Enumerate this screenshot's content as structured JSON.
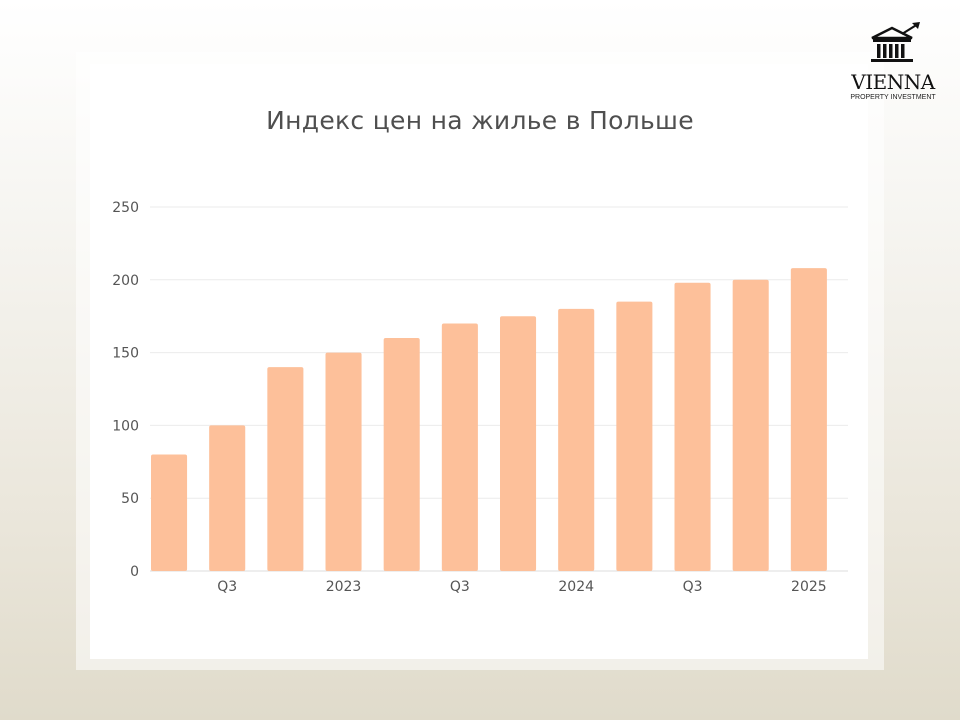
{
  "brand": {
    "name": "VIENNA",
    "tagline": "PROPERTY INVESTMENT",
    "logo_icon": "building-arrow-icon"
  },
  "colors": {
    "bar": "#fdc09a",
    "grid": "#ebebeb",
    "tick": "#555555",
    "title": "#4f4f4f"
  },
  "chart_data": {
    "type": "bar",
    "title": "Индекс цен на жилье в Польше",
    "xlabel": "",
    "ylabel": "",
    "ylim": [
      0,
      250
    ],
    "yticks": [
      0,
      50,
      100,
      150,
      200,
      250
    ],
    "grid": true,
    "legend": "none",
    "values": [
      80,
      100,
      140,
      150,
      160,
      170,
      175,
      180,
      185,
      198,
      200,
      208
    ],
    "tick_labels": [
      "",
      "Q3",
      "",
      "2023",
      "",
      "Q3",
      "",
      "2024",
      "",
      "Q3",
      "",
      "2025"
    ]
  }
}
